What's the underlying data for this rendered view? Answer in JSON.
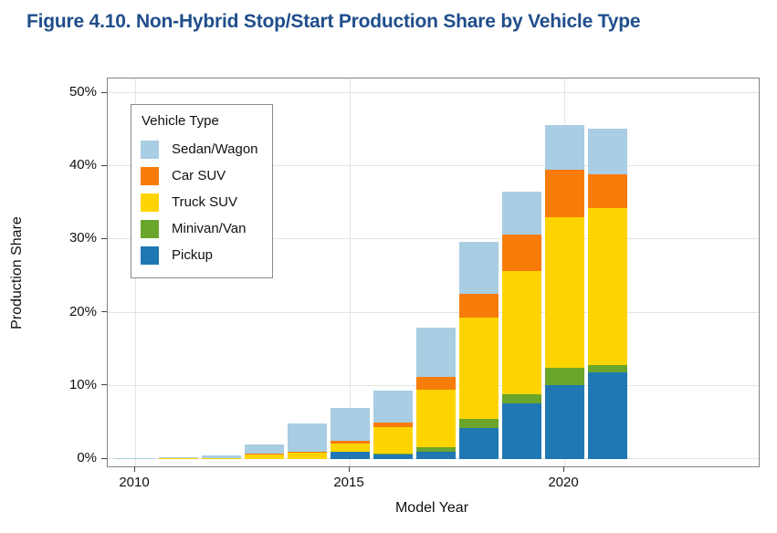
{
  "figure_title": "Figure 4.10. Non-Hybrid Stop/Start Production Share by Vehicle Type",
  "chart_data": {
    "type": "bar",
    "stacked": true,
    "xlabel": "Model Year",
    "ylabel": "Production Share",
    "x": [
      2010,
      2011,
      2012,
      2013,
      2014,
      2015,
      2016,
      2017,
      2018,
      2019,
      2020,
      2021
    ],
    "ylim": [
      0,
      50
    ],
    "y_ticks": [
      {
        "value": 0,
        "label": "0%"
      },
      {
        "value": 10,
        "label": "10%"
      },
      {
        "value": 20,
        "label": "20%"
      },
      {
        "value": 30,
        "label": "30%"
      },
      {
        "value": 40,
        "label": "40%"
      },
      {
        "value": 50,
        "label": "50%"
      }
    ],
    "x_ticks": [
      {
        "year": 2010,
        "label": "2010"
      },
      {
        "year": 2015,
        "label": "2015"
      },
      {
        "year": 2020,
        "label": "2020"
      }
    ],
    "grid": "major-only",
    "legend_position": "top-left-inside",
    "legend_title": "Vehicle Type",
    "legend_order": [
      "Sedan/Wagon",
      "Car SUV",
      "Truck SUV",
      "Minivan/Van",
      "Pickup"
    ],
    "stack_order_bottom_to_top": [
      "Pickup",
      "Minivan/Van",
      "Truck SUV",
      "Car SUV",
      "Sedan/Wagon"
    ],
    "series": [
      {
        "name": "Pickup",
        "color": "#1f78b4",
        "values": [
          0,
          0,
          0,
          0,
          0,
          0.95,
          0.7,
          1.0,
          4.3,
          7.6,
          10.1,
          11.9
        ]
      },
      {
        "name": "Minivan/Van",
        "color": "#6aa52c",
        "values": [
          0,
          0,
          0,
          0,
          0,
          0,
          0.05,
          0.6,
          1.2,
          1.25,
          2.4,
          1.0
        ]
      },
      {
        "name": "Truck SUV",
        "color": "#fdd400",
        "values": [
          0,
          0.1,
          0.1,
          0.6,
          0.85,
          1.15,
          3.65,
          7.9,
          13.8,
          16.8,
          20.5,
          21.4
        ]
      },
      {
        "name": "Car SUV",
        "color": "#f87c0a",
        "values": [
          0,
          0,
          0,
          0.1,
          0.1,
          0.35,
          0.6,
          1.7,
          3.3,
          5.0,
          6.5,
          4.6
        ]
      },
      {
        "name": "Sedan/Wagon",
        "color": "#a9cde3",
        "values": [
          0.05,
          0.1,
          0.4,
          1.35,
          3.9,
          4.55,
          4.35,
          6.7,
          7.1,
          5.9,
          6.2,
          6.3
        ]
      }
    ],
    "bar_totals": [
      0.05,
      0.2,
      0.5,
      2.05,
      4.85,
      7.0,
      9.35,
      17.9,
      29.7,
      36.55,
      45.7,
      45.2
    ]
  },
  "colors": {
    "title": "#1f4e8c",
    "gridline": "#e4e4e4",
    "panel_border": "#848484",
    "axis_text": "#111111"
  }
}
